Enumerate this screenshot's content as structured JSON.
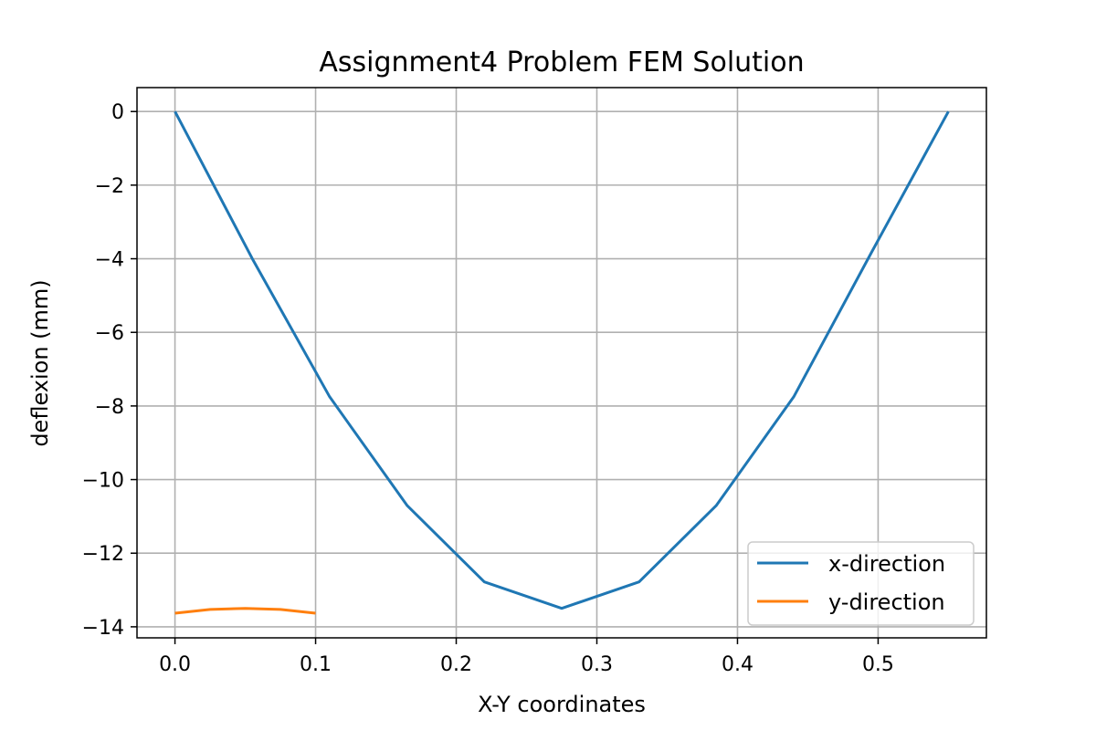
{
  "chart_data": {
    "type": "line",
    "title": "Assignment4 Problem FEM Solution",
    "xlabel": "X-Y coordinates",
    "ylabel": "deflexion (mm)",
    "xlim": [
      -0.027,
      0.577
    ],
    "ylim": [
      -14.3,
      0.65
    ],
    "xticks": [
      0.0,
      0.1,
      0.2,
      0.3,
      0.4,
      0.5
    ],
    "xtick_labels": [
      "0.0",
      "0.1",
      "0.2",
      "0.3",
      "0.4",
      "0.5"
    ],
    "yticks": [
      0,
      -2,
      -4,
      -6,
      -8,
      -10,
      -12,
      -14
    ],
    "ytick_labels": [
      "0",
      "−2",
      "−4",
      "−6",
      "−8",
      "−10",
      "−12",
      "−14"
    ],
    "grid": true,
    "legend_position": "lower-right",
    "series": [
      {
        "name": "x-direction",
        "color": "#1f77b4",
        "x": [
          0.0,
          0.055,
          0.11,
          0.165,
          0.22,
          0.275,
          0.33,
          0.385,
          0.44,
          0.495,
          0.55
        ],
        "y": [
          0.0,
          -4.0,
          -7.75,
          -10.7,
          -12.78,
          -13.5,
          -12.78,
          -10.7,
          -7.75,
          -3.85,
          0.0
        ]
      },
      {
        "name": "y-direction",
        "color": "#ff7f0e",
        "x": [
          0.0,
          0.025,
          0.05,
          0.075,
          0.1
        ],
        "y": [
          -13.63,
          -13.53,
          -13.5,
          -13.53,
          -13.63
        ]
      }
    ]
  }
}
